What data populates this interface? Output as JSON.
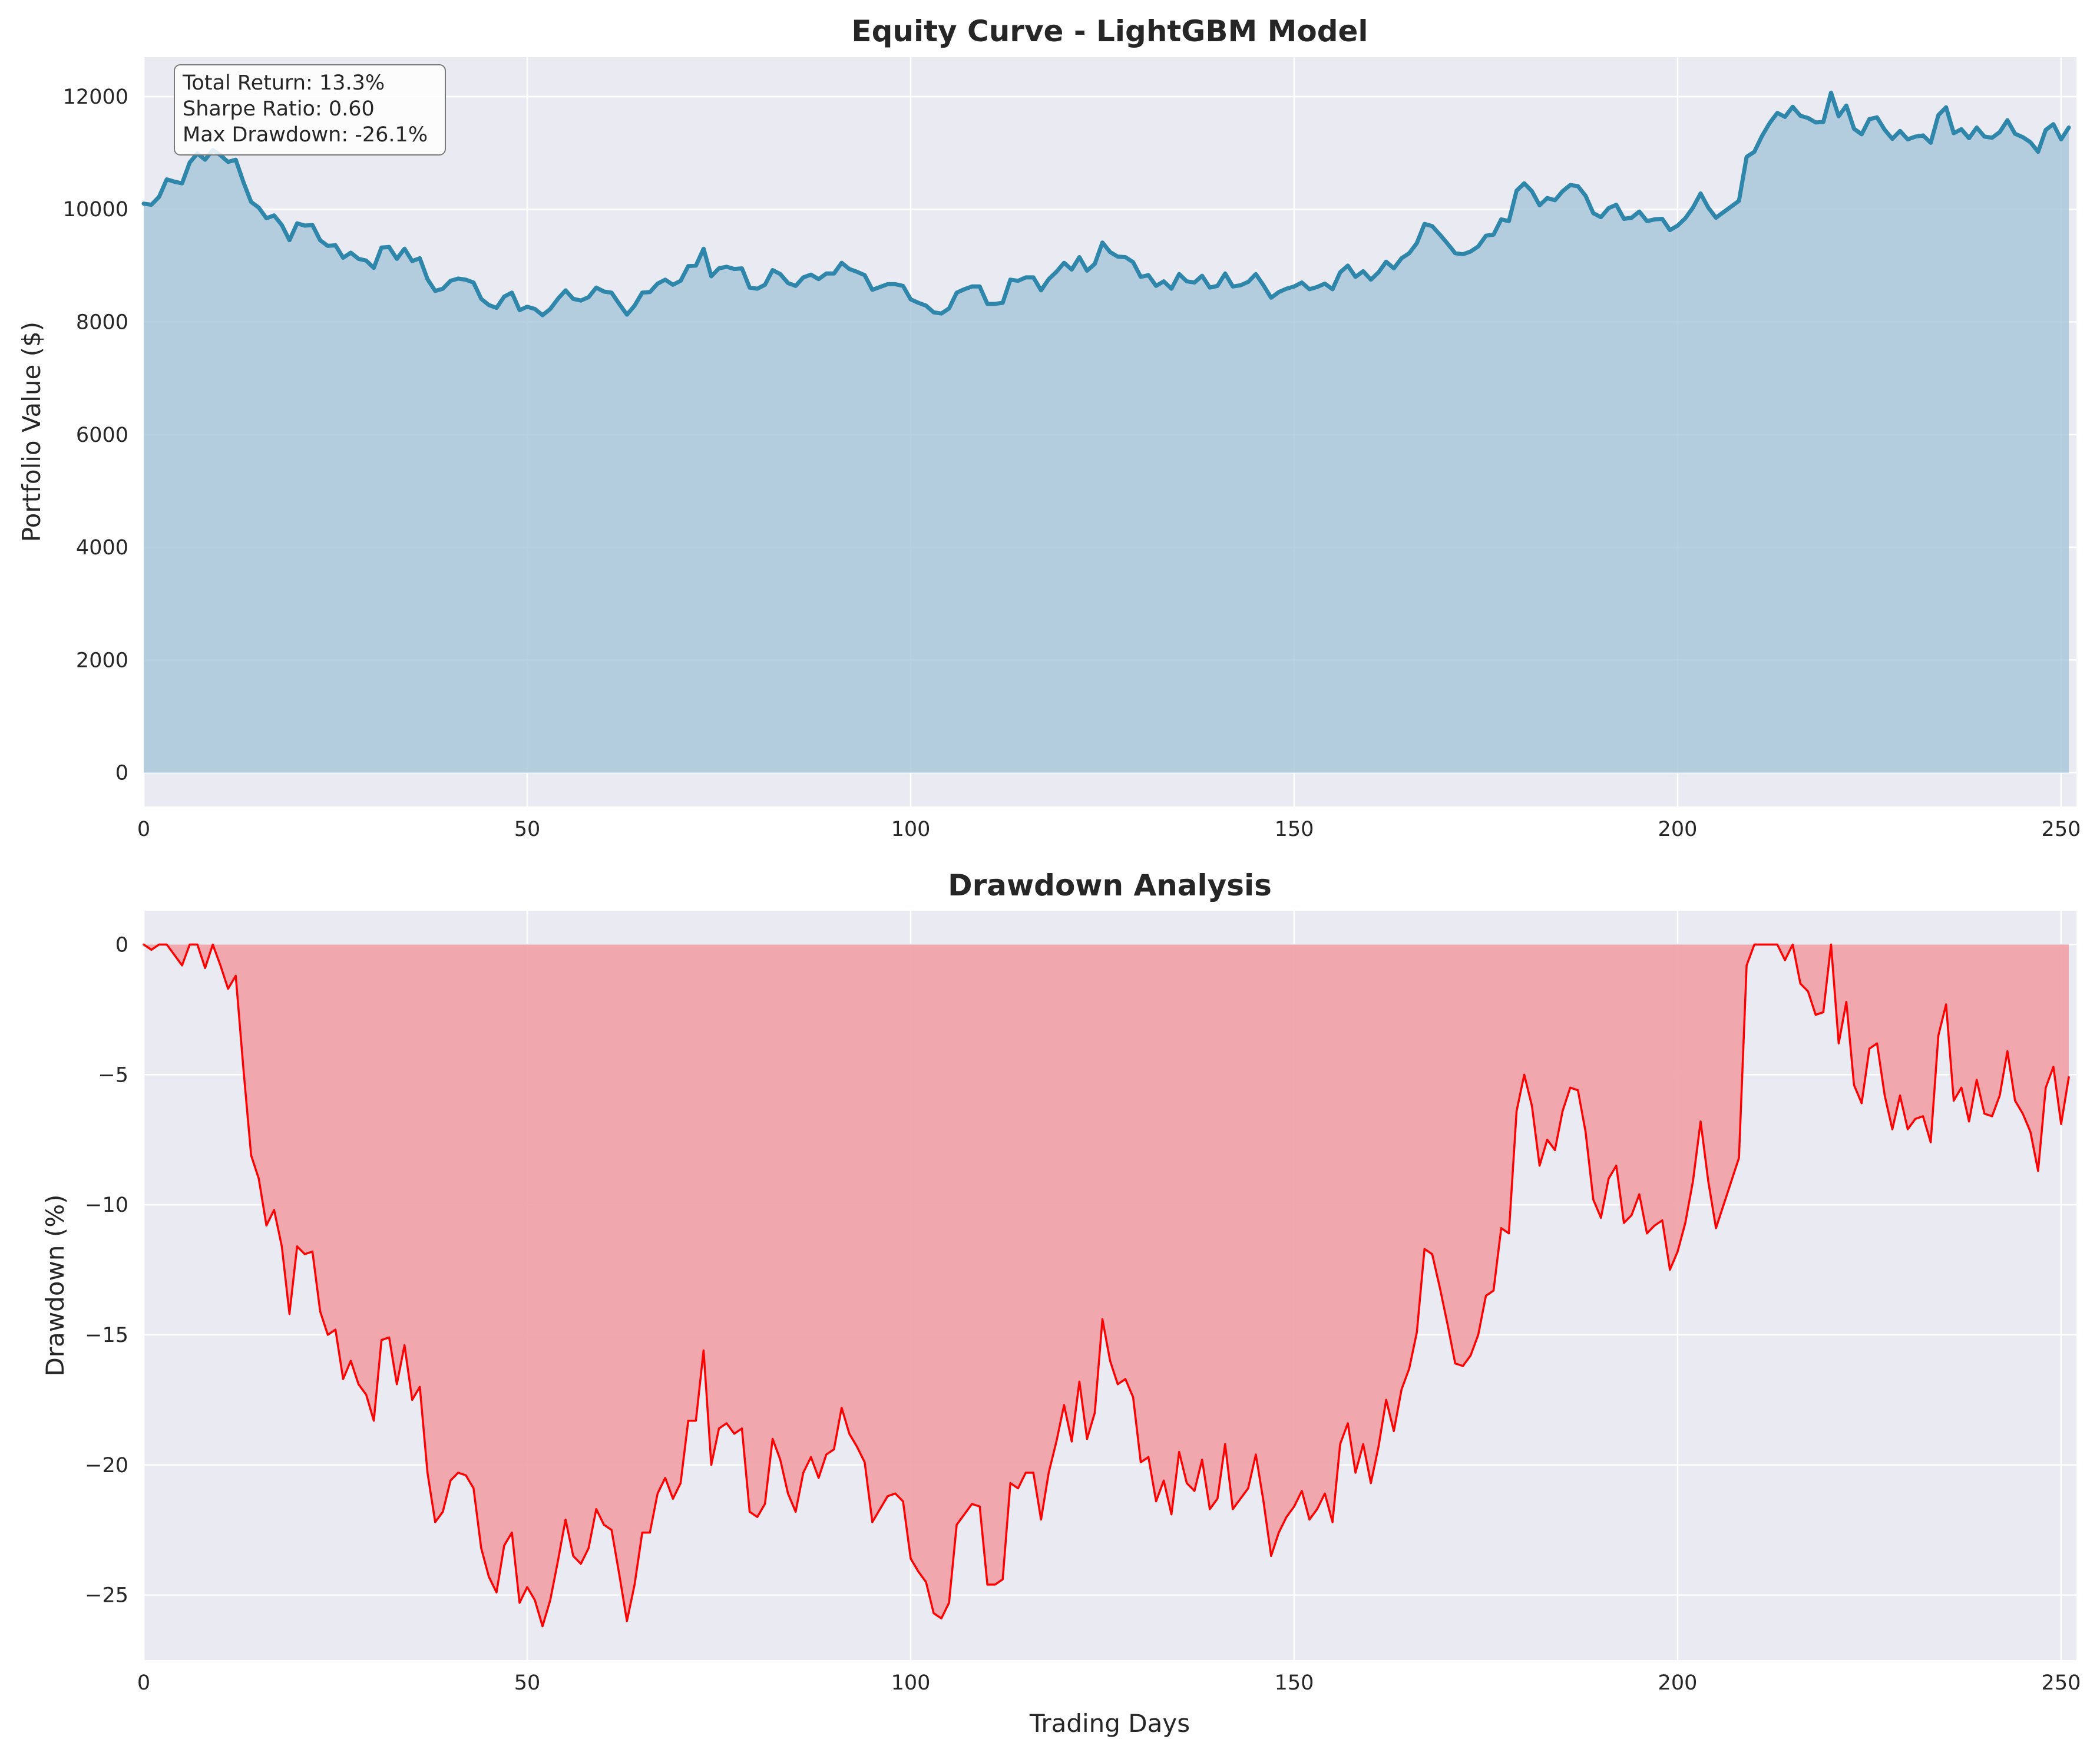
{
  "chart_data": [
    {
      "type": "area",
      "title": "Equity Curve - LightGBM Model",
      "xlabel": "",
      "ylabel": "Portfolio Value ($)",
      "xlim": [
        0,
        252
      ],
      "ylim": [
        -600,
        12700
      ],
      "xticks": [
        0,
        50,
        100,
        150,
        200,
        250
      ],
      "yticks": [
        0,
        2000,
        4000,
        6000,
        8000,
        10000,
        12000
      ],
      "grid": true,
      "line_color": "#2e86ab",
      "fill_color": "#a9c8dc",
      "annotation": [
        "Total Return: 13.3%",
        "Sharpe Ratio: 0.60",
        "Max Drawdown: -26.1%"
      ],
      "x_start": 0,
      "values": [
        10100,
        10080,
        10220,
        10530,
        10490,
        10460,
        10830,
        10990,
        10880,
        11050,
        10960,
        10840,
        10880,
        10480,
        10130,
        10030,
        9840,
        9890,
        9720,
        9450,
        9750,
        9710,
        9720,
        9450,
        9350,
        9360,
        9140,
        9230,
        9120,
        9090,
        8960,
        9320,
        9330,
        9120,
        9300,
        9080,
        9130,
        8760,
        8550,
        8590,
        8730,
        8770,
        8750,
        8700,
        8410,
        8300,
        8250,
        8450,
        8520,
        8210,
        8270,
        8230,
        8120,
        8230,
        8410,
        8560,
        8410,
        8380,
        8440,
        8610,
        8540,
        8520,
        8320,
        8130,
        8290,
        8520,
        8530,
        8680,
        8750,
        8660,
        8730,
        8990,
        9000,
        9300,
        8810,
        8950,
        8980,
        8940,
        8950,
        8610,
        8590,
        8660,
        8920,
        8850,
        8690,
        8640,
        8790,
        8840,
        8760,
        8860,
        8860,
        9050,
        8940,
        8890,
        8830,
        8570,
        8620,
        8670,
        8670,
        8640,
        8400,
        8340,
        8290,
        8170,
        8150,
        8240,
        8520,
        8580,
        8630,
        8630,
        8320,
        8320,
        8340,
        8750,
        8730,
        8790,
        8790,
        8560,
        8760,
        8890,
        9050,
        8930,
        9150,
        8910,
        9030,
        9410,
        9240,
        9160,
        9150,
        9060,
        8800,
        8830,
        8640,
        8720,
        8590,
        8850,
        8720,
        8700,
        8820,
        8610,
        8640,
        8860,
        8630,
        8650,
        8710,
        8850,
        8650,
        8430,
        8530,
        8590,
        8630,
        8700,
        8580,
        8620,
        8680,
        8580,
        8880,
        9000,
        8800,
        8900,
        8750,
        8880,
        9070,
        8950,
        9130,
        9220,
        9400,
        9740,
        9700,
        9550,
        9390,
        9220,
        9200,
        9250,
        9340,
        9530,
        9550,
        9820,
        9790,
        10330,
        10460,
        10320,
        10070,
        10200,
        10160,
        10320,
        10430,
        10410,
        10240,
        9930,
        9860,
        10020,
        10080,
        9830,
        9850,
        9960,
        9790,
        9820,
        9830,
        9630,
        9710,
        9840,
        10030,
        10280,
        10030,
        9850,
        9950,
        10050,
        10150,
        10930,
        11020,
        11300,
        11530,
        11710,
        11640,
        11820,
        11660,
        11620,
        11540,
        11550,
        12070,
        11650,
        11840,
        11430,
        11330,
        11600,
        11630,
        11410,
        11250,
        11390,
        11240,
        11290,
        11310,
        11180,
        11670,
        11810,
        11350,
        11420,
        11260,
        11450,
        11290,
        11270,
        11370,
        11580,
        11340,
        11280,
        11190,
        11020,
        11410,
        11510,
        11240,
        11450
      ]
    },
    {
      "type": "area",
      "title": "Drawdown Analysis",
      "xlabel": "Trading Days",
      "ylabel": "Drawdown (%)",
      "xlim": [
        0,
        252
      ],
      "ylim": [
        -27.5,
        1.3
      ],
      "xticks": [
        0,
        50,
        100,
        150,
        200,
        250
      ],
      "yticks": [
        0,
        -5,
        -10,
        -15,
        -20,
        -25
      ],
      "ytick_labels": [
        "0",
        "−5",
        "−10",
        "−15",
        "−20",
        "−25"
      ],
      "grid": true,
      "line_color": "#ff0000",
      "fill_color": "#f0a4aa",
      "x_start": 0,
      "values": [
        0,
        -0.2,
        0,
        0,
        -0.4,
        -0.8,
        0,
        0,
        -0.9,
        0,
        -0.8,
        -1.7,
        -1.2,
        -4.8,
        -8.1,
        -9.0,
        -10.8,
        -10.2,
        -11.6,
        -14.2,
        -11.6,
        -11.9,
        -11.8,
        -14.1,
        -15.0,
        -14.8,
        -16.7,
        -16.0,
        -16.9,
        -17.3,
        -18.3,
        -15.2,
        -15.1,
        -16.9,
        -15.4,
        -17.5,
        -17.0,
        -20.3,
        -22.2,
        -21.8,
        -20.6,
        -20.3,
        -20.4,
        -20.9,
        -23.2,
        -24.3,
        -24.9,
        -23.1,
        -22.6,
        -25.3,
        -24.7,
        -25.2,
        -26.2,
        -25.2,
        -23.7,
        -22.1,
        -23.5,
        -23.8,
        -23.2,
        -21.7,
        -22.3,
        -22.5,
        -24.2,
        -26.0,
        -24.6,
        -22.6,
        -22.6,
        -21.1,
        -20.5,
        -21.3,
        -20.7,
        -18.3,
        -18.3,
        -15.6,
        -20.0,
        -18.6,
        -18.4,
        -18.8,
        -18.6,
        -21.8,
        -22.0,
        -21.5,
        -19.0,
        -19.8,
        -21.1,
        -21.8,
        -20.3,
        -19.7,
        -20.5,
        -19.6,
        -19.4,
        -17.8,
        -18.8,
        -19.3,
        -19.9,
        -22.2,
        -21.7,
        -21.2,
        -21.1,
        -21.4,
        -23.6,
        -24.1,
        -24.5,
        -25.7,
        -25.9,
        -25.3,
        -22.3,
        -21.9,
        -21.5,
        -21.6,
        -24.6,
        -24.6,
        -24.4,
        -20.7,
        -20.9,
        -20.3,
        -20.3,
        -22.1,
        -20.3,
        -19.1,
        -17.7,
        -19.1,
        -16.8,
        -19.0,
        -18.0,
        -14.4,
        -16.0,
        -16.9,
        -16.7,
        -17.4,
        -19.9,
        -19.7,
        -21.4,
        -20.6,
        -21.9,
        -19.5,
        -20.7,
        -21.0,
        -19.8,
        -21.7,
        -21.3,
        -19.2,
        -21.7,
        -21.3,
        -20.9,
        -19.6,
        -21.4,
        -23.5,
        -22.6,
        -22.0,
        -21.6,
        -21.0,
        -22.1,
        -21.7,
        -21.1,
        -22.2,
        -19.2,
        -18.4,
        -20.3,
        -19.2,
        -20.7,
        -19.3,
        -17.5,
        -18.7,
        -17.1,
        -16.3,
        -14.9,
        -11.7,
        -11.9,
        -13.2,
        -14.6,
        -16.1,
        -16.2,
        -15.8,
        -15.0,
        -13.5,
        -13.3,
        -10.9,
        -11.1,
        -6.4,
        -5.0,
        -6.2,
        -8.5,
        -7.5,
        -7.9,
        -6.4,
        -5.5,
        -5.6,
        -7.2,
        -9.8,
        -10.5,
        -9.0,
        -8.5,
        -10.7,
        -10.4,
        -9.6,
        -11.1,
        -10.8,
        -10.6,
        -12.5,
        -11.8,
        -10.7,
        -9.1,
        -6.8,
        -9.1,
        -10.9,
        -10.0,
        -9.1,
        -8.2,
        -0.8,
        0,
        0,
        0,
        0,
        -0.6,
        0,
        -1.5,
        -1.8,
        -2.7,
        -2.6,
        0,
        -3.8,
        -2.2,
        -5.4,
        -6.1,
        -4.0,
        -3.8,
        -5.8,
        -7.1,
        -5.8,
        -7.1,
        -6.7,
        -6.6,
        -7.6,
        -3.5,
        -2.3,
        -6.0,
        -5.5,
        -6.8,
        -5.2,
        -6.5,
        -6.6,
        -5.8,
        -4.1,
        -6.0,
        -6.5,
        -7.2,
        -8.7,
        -5.5,
        -4.7,
        -6.9,
        -5.1
      ]
    }
  ]
}
